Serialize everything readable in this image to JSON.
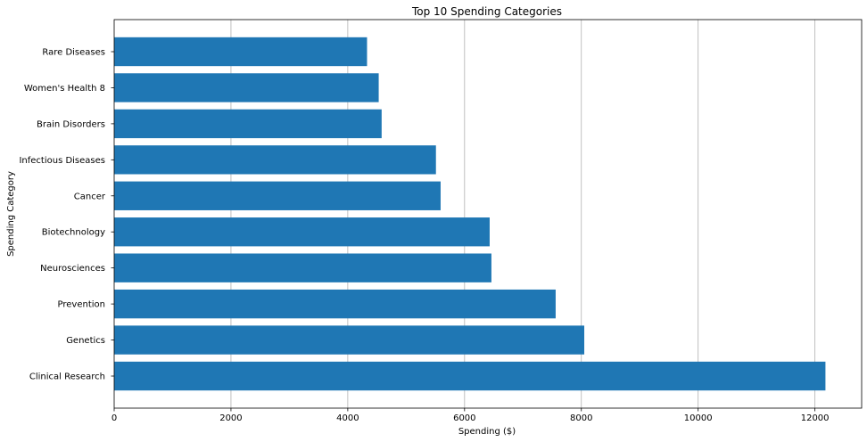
{
  "chart_data": {
    "type": "bar",
    "orientation": "horizontal",
    "title": "Top 10 Spending Categories",
    "xlabel": "Spending ($)",
    "ylabel": "Spending Category",
    "categories": [
      "Clinical Research",
      "Genetics",
      "Prevention",
      "Neurosciences",
      "Biotechnology",
      "Cancer",
      "Infectious Diseases",
      "Brain Disorders",
      "Women's Health 8",
      "Rare Diseases"
    ],
    "values": [
      12180,
      8050,
      7560,
      6460,
      6430,
      5590,
      5510,
      4580,
      4530,
      4330
    ],
    "xlim": [
      0,
      12800
    ],
    "xticks": [
      0,
      2000,
      4000,
      6000,
      8000,
      10000,
      12000
    ],
    "grid": "x",
    "bar_color": "#1f77b4"
  }
}
